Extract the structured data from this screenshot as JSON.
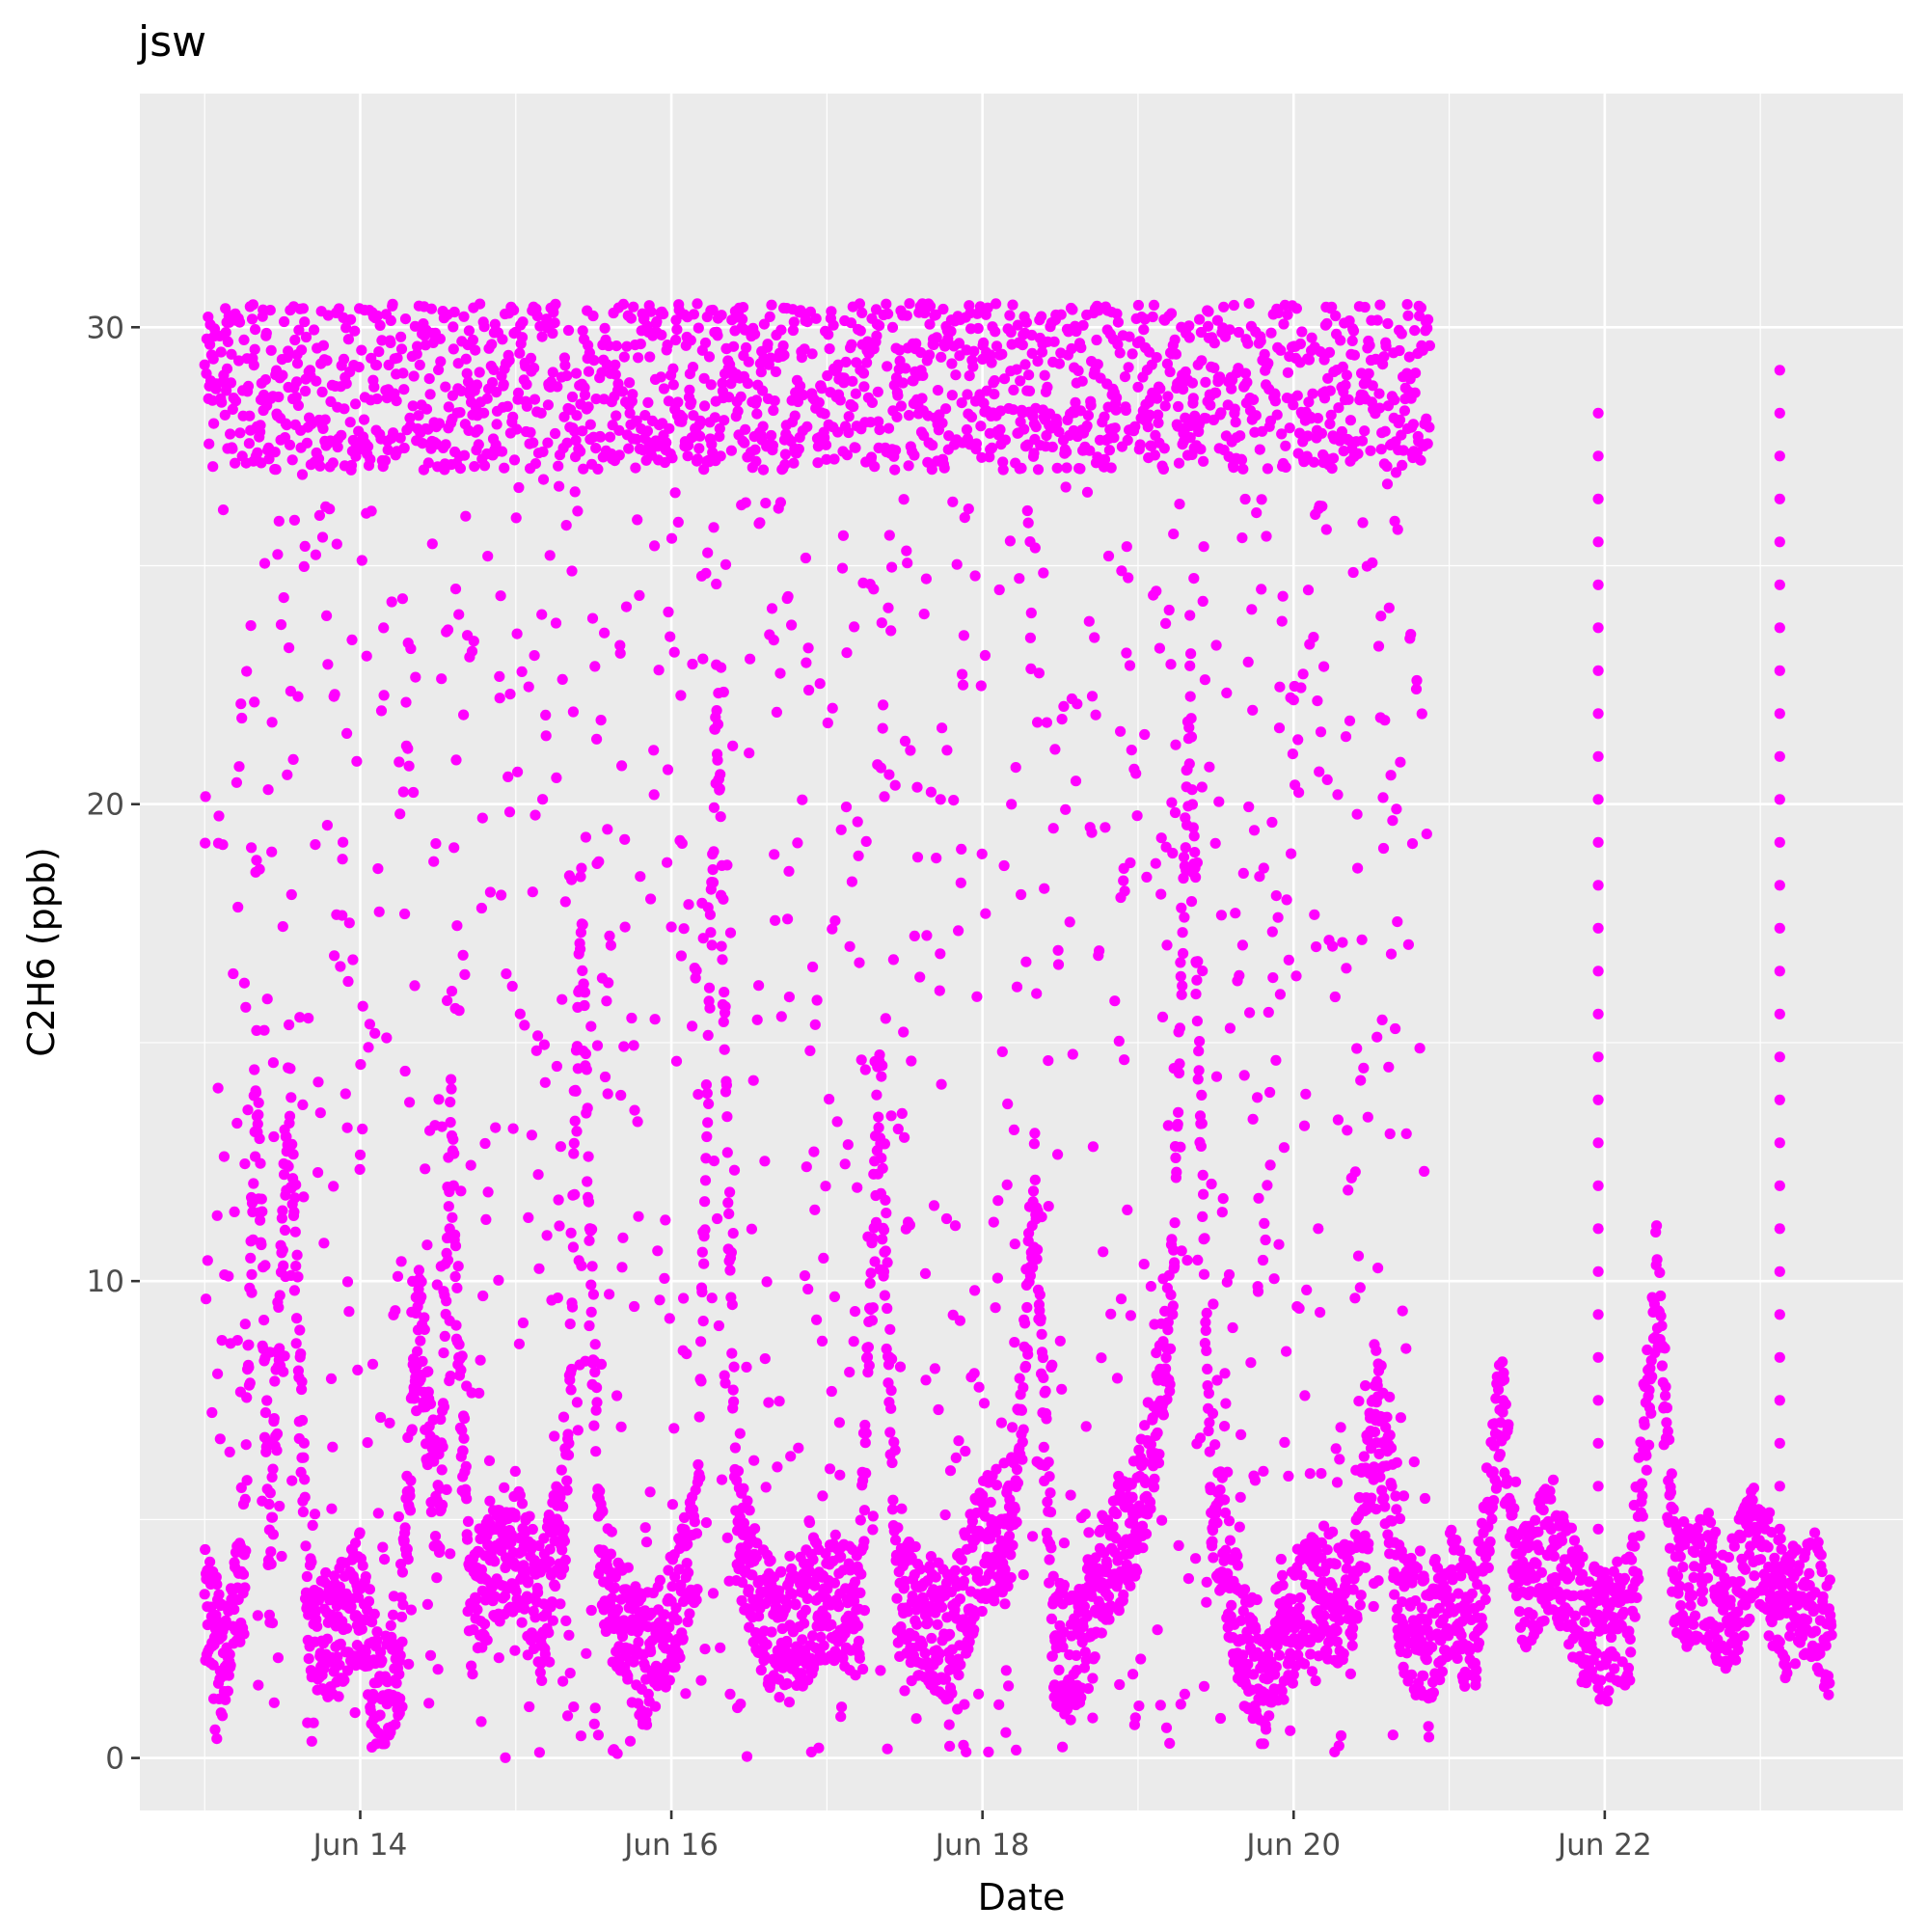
{
  "chart_data": {
    "type": "scatter",
    "title": "jsw",
    "xlabel": "Date",
    "ylabel": "C2H6 (ppb)",
    "x_axis_type": "date",
    "xlim": [
      "2024-06-12T14:00",
      "2024-06-23T22:00"
    ],
    "ylim": [
      -1.1,
      34.9
    ],
    "x_ticks": [
      {
        "label": "Jun 14",
        "date": "2024-06-14"
      },
      {
        "label": "Jun 16",
        "date": "2024-06-16"
      },
      {
        "label": "Jun 18",
        "date": "2024-06-18"
      },
      {
        "label": "Jun 20",
        "date": "2024-06-20"
      },
      {
        "label": "Jun 22",
        "date": "2024-06-22"
      }
    ],
    "y_ticks": [
      0,
      10,
      20,
      30
    ],
    "grid": true,
    "legend": "none",
    "colors": {
      "points": "#FF00FF",
      "panel": "#EBEBEB",
      "grid": "#FFFFFF",
      "text": "#000000",
      "tick_text": "#4D4D4D"
    },
    "series": [
      {
        "color": "#FF00FF",
        "baseline": [
          [
            "2024-06-13T00:00",
            3.0
          ],
          [
            "2024-06-13T03:00",
            2.2
          ],
          [
            "2024-06-13T06:00",
            3.5
          ],
          [
            "2024-06-13T08:00",
            15.0
          ],
          [
            "2024-06-13T10:00",
            4.0
          ],
          [
            "2024-06-13T13:00",
            14.0
          ],
          [
            "2024-06-13T16:00",
            3.0
          ],
          [
            "2024-06-13T20:00",
            2.5
          ],
          [
            "2024-06-14T00:00",
            3.5
          ],
          [
            "2024-06-14T03:00",
            1.0
          ],
          [
            "2024-06-14T06:00",
            2.0
          ],
          [
            "2024-06-14T09:00",
            9.5
          ],
          [
            "2024-06-14T12:00",
            4.5
          ],
          [
            "2024-06-14T14:00",
            13.0
          ],
          [
            "2024-06-14T17:00",
            3.0
          ],
          [
            "2024-06-14T20:00",
            4.0
          ],
          [
            "2024-06-15T00:00",
            4.5
          ],
          [
            "2024-06-15T04:00",
            3.0
          ],
          [
            "2024-06-15T08:00",
            5.5
          ],
          [
            "2024-06-15T10:00",
            18.0
          ],
          [
            "2024-06-15T13:00",
            4.0
          ],
          [
            "2024-06-15T16:00",
            3.0
          ],
          [
            "2024-06-15T20:00",
            2.0
          ],
          [
            "2024-06-16T00:00",
            3.0
          ],
          [
            "2024-06-16T04:00",
            4.5
          ],
          [
            "2024-06-16T07:00",
            22.5
          ],
          [
            "2024-06-16T10:00",
            5.0
          ],
          [
            "2024-06-16T14:00",
            3.0
          ],
          [
            "2024-06-16T18:00",
            2.5
          ],
          [
            "2024-06-17T00:00",
            3.5
          ],
          [
            "2024-06-17T05:00",
            3.0
          ],
          [
            "2024-06-17T08:00",
            14.0
          ],
          [
            "2024-06-17T11:00",
            3.5
          ],
          [
            "2024-06-17T15:00",
            3.0
          ],
          [
            "2024-06-17T19:00",
            2.5
          ],
          [
            "2024-06-18T00:00",
            4.5
          ],
          [
            "2024-06-18T05:00",
            5.0
          ],
          [
            "2024-06-18T08:00",
            12.0
          ],
          [
            "2024-06-18T11:00",
            2.5
          ],
          [
            "2024-06-18T15:00",
            2.0
          ],
          [
            "2024-06-18T19:00",
            4.0
          ],
          [
            "2024-06-19T00:00",
            5.0
          ],
          [
            "2024-06-19T05:00",
            9.0
          ],
          [
            "2024-06-19T08:00",
            22.5
          ],
          [
            "2024-06-19T11:00",
            6.0
          ],
          [
            "2024-06-19T15:00",
            3.0
          ],
          [
            "2024-06-19T19:00",
            1.5
          ],
          [
            "2024-06-20T00:00",
            3.0
          ],
          [
            "2024-06-20T05:00",
            3.5
          ],
          [
            "2024-06-20T09:00",
            3.0
          ],
          [
            "2024-06-20T13:00",
            7.5
          ],
          [
            "2024-06-20T17:00",
            3.0
          ],
          [
            "2024-06-20T21:00",
            2.5
          ],
          [
            "2024-06-21T00:00",
            3.5
          ],
          [
            "2024-06-21T04:00",
            2.5
          ],
          [
            "2024-06-21T08:00",
            7.5
          ],
          [
            "2024-06-21T11:00",
            3.5
          ],
          [
            "2024-06-21T16:00",
            4.5
          ],
          [
            "2024-06-21T20:00",
            3.0
          ],
          [
            "2024-06-22T00:00",
            2.5
          ],
          [
            "2024-06-22T04:00",
            3.0
          ],
          [
            "2024-06-22T08:00",
            10.0
          ],
          [
            "2024-06-22T11:00",
            3.5
          ],
          [
            "2024-06-22T15:00",
            4.0
          ],
          [
            "2024-06-22T19:00",
            3.0
          ],
          [
            "2024-06-22T23:00",
            4.5
          ],
          [
            "2024-06-23T04:00",
            3.0
          ],
          [
            "2024-06-23T08:00",
            3.5
          ],
          [
            "2024-06-23T11:00",
            2.5
          ]
        ],
        "baseline_noise": 1.4,
        "high_mode": {
          "start": "2024-06-13T00:00",
          "end": "2024-06-20T21:00",
          "min": 0,
          "max": 31.5,
          "typical": 28.5
        },
        "isolated_columns": [
          {
            "date": "2024-06-21T23:00",
            "min": 3.0,
            "max": 28.5
          },
          {
            "date": "2024-06-23T03:00",
            "min": 3.0,
            "max": 29.5
          }
        ]
      }
    ]
  }
}
